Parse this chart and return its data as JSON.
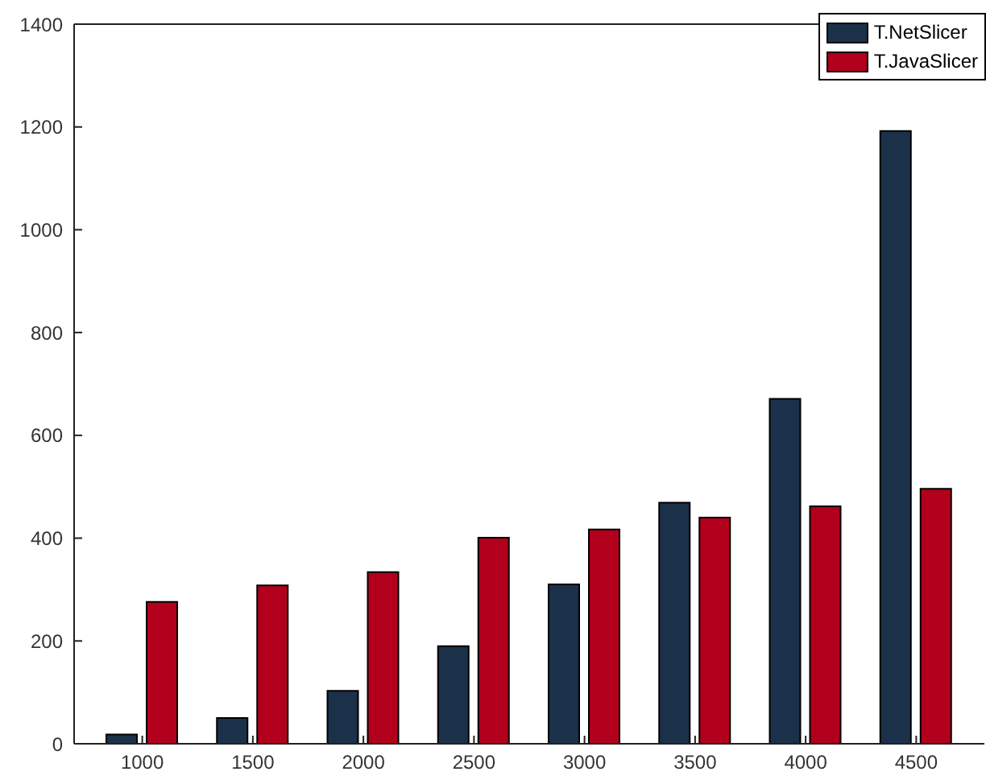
{
  "chart_data": {
    "type": "bar",
    "categories": [
      "1000",
      "1500",
      "2000",
      "2500",
      "3000",
      "3500",
      "4000",
      "4500"
    ],
    "series": [
      {
        "name": "T.NetSlicer",
        "color": "#1b3149",
        "values": [
          18,
          50,
          103,
          190,
          310,
          469,
          671,
          1192
        ]
      },
      {
        "name": "T.JavaSlicer",
        "color": "#b2001c",
        "values": [
          276,
          308,
          334,
          401,
          417,
          440,
          462,
          496
        ]
      }
    ],
    "ylim": [
      0,
      1400
    ],
    "yticks": [
      0,
      200,
      400,
      600,
      800,
      1000,
      1200,
      1400
    ],
    "grid": false,
    "legend": "top right"
  }
}
